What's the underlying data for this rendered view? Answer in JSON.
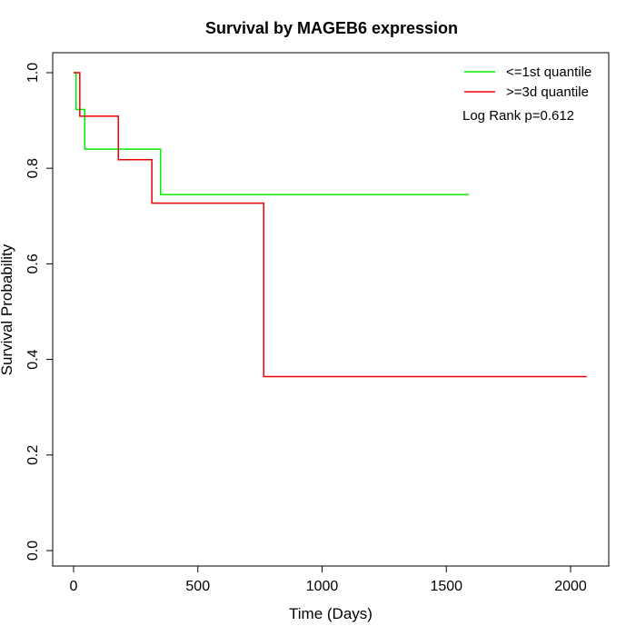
{
  "chart_data": {
    "type": "line",
    "step": true,
    "title": "Survival by MAGEB6 expression",
    "xlabel": "Time (Days)",
    "ylabel": "Survival Probability",
    "xlim": [
      0,
      2070
    ],
    "ylim": [
      0,
      1
    ],
    "x_ticks": [
      0,
      500,
      1000,
      1500,
      2000
    ],
    "x_tick_labels": [
      "0",
      "500",
      "1000",
      "1500",
      "2000"
    ],
    "y_ticks": [
      0,
      0.2,
      0.4,
      0.6,
      0.8,
      1.0
    ],
    "y_tick_labels": [
      "0.0",
      "0.2",
      "0.4",
      "0.6",
      "0.8",
      "1.0"
    ],
    "legend_position": "top-right",
    "annotation": "Log Rank p=0.612",
    "series": [
      {
        "name": "<=1st quantile",
        "color": "#00ee00",
        "x": [
          0,
          10,
          45,
          350,
          1590
        ],
        "y": [
          1.0,
          0.923,
          0.84,
          0.745,
          0.745
        ]
      },
      {
        "name": ">=3d quantile",
        "color": "#ee0000",
        "x": [
          0,
          25,
          180,
          315,
          765,
          2065
        ],
        "y": [
          1.0,
          0.909,
          0.818,
          0.727,
          0.364,
          0.364
        ]
      }
    ]
  }
}
